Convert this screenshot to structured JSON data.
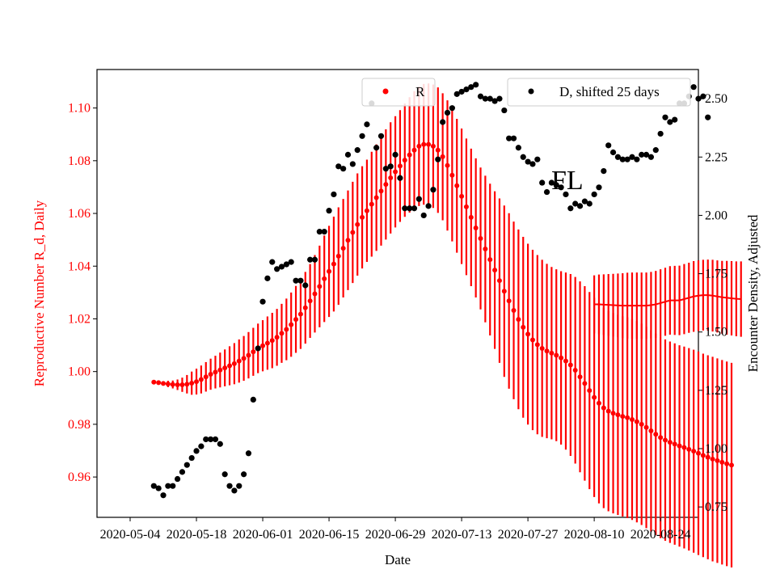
{
  "chart_data": {
    "type": "scatter",
    "title": "",
    "annotation": "FL",
    "xlabel": "Date",
    "ylabel_left": "Reproductive Number R_d, Daily",
    "ylabel_right": "Encounter Density, Adjusted",
    "colors": {
      "r_series": "#ff0000",
      "d_series": "#000000"
    },
    "grid": false,
    "legend": [
      {
        "label": "R",
        "placement": "top-center",
        "color": "#ff0000"
      },
      {
        "label": "D, shifted 25 days",
        "placement": "top-right",
        "color": "#000000"
      }
    ],
    "x_ticks": [
      "2020-05-04",
      "2020-05-18",
      "2020-06-01",
      "2020-06-15",
      "2020-06-29",
      "2020-07-13",
      "2020-07-27",
      "2020-08-10",
      "2020-08-24"
    ],
    "x_range": [
      "2020-04-27",
      "2020-09-01"
    ],
    "y_left_ticks": [
      "0.96",
      "0.98",
      "1.00",
      "1.02",
      "1.04",
      "1.06",
      "1.08",
      "1.10"
    ],
    "y_left_range": [
      0.9447,
      1.1146
    ],
    "y_right_ticks": [
      "0.75",
      "1.00",
      "1.25",
      "1.50",
      "1.75",
      "2.00",
      "2.25",
      "2.50"
    ],
    "y_right_range": [
      0.7055,
      2.6252
    ],
    "series_R": {
      "name": "R",
      "start_date": "2020-05-09",
      "values": [
        0.996,
        0.9958,
        0.9955,
        0.9953,
        0.9951,
        0.995,
        0.995,
        0.9952,
        0.9956,
        0.9962,
        0.997,
        0.998,
        0.999,
        0.9998,
        1.0006,
        1.0014,
        1.0022,
        1.003,
        1.004,
        1.005,
        1.0062,
        1.0075,
        1.0088,
        1.0098,
        1.0108,
        1.0118,
        1.013,
        1.0145,
        1.016,
        1.0178,
        1.0198,
        1.0218,
        1.0242,
        1.0268,
        1.0295,
        1.0323,
        1.0352,
        1.038,
        1.0408,
        1.0438,
        1.0468,
        1.0498,
        1.0528,
        1.0558,
        1.0585,
        1.061,
        1.0635,
        1.066,
        1.0685,
        1.071,
        1.0735,
        1.0758,
        1.078,
        1.0802,
        1.0822,
        1.084,
        1.0855,
        1.0862,
        1.0862,
        1.0855,
        1.084,
        1.0815,
        1.0782,
        1.0745,
        1.0705,
        1.0665,
        1.0625,
        1.0585,
        1.0545,
        1.0505,
        1.0465,
        1.0425,
        1.0385,
        1.0345,
        1.0305,
        1.0268,
        1.0232,
        1.0198,
        1.0168,
        1.0142,
        1.012,
        1.0102,
        1.0088,
        1.0078,
        1.007,
        1.0062,
        1.0052,
        1.004,
        1.0025,
        1.0005,
        0.998,
        0.9955,
        0.9928,
        0.9902,
        0.988,
        0.9862,
        0.985,
        0.9842,
        0.9836,
        0.983,
        0.9825,
        0.9818,
        0.981,
        0.98,
        0.9788,
        0.9775,
        0.9762,
        0.975,
        0.974,
        0.9732,
        0.9725,
        0.9718,
        0.9712,
        0.9705,
        0.9698,
        0.969,
        0.9682,
        0.9675,
        0.9668,
        0.9662,
        0.9656,
        0.965,
        0.9645
      ],
      "err_lo": [
        0.9958,
        0.9953,
        0.9947,
        0.9941,
        0.9936,
        0.993,
        0.9923,
        0.9917,
        0.9912,
        0.9913,
        0.9917,
        0.9924,
        0.9931,
        0.9936,
        0.994,
        0.9944,
        0.9948,
        0.9952,
        0.9958,
        0.9965,
        0.9974,
        0.9984,
        0.9994,
        1.0001,
        1.0007,
        1.0013,
        1.0022,
        1.0033,
        1.0043,
        1.0056,
        1.0071,
        1.0086,
        1.0106,
        1.0128,
        1.0148,
        1.0168,
        1.0188,
        1.0207,
        1.0228,
        1.0253,
        1.0281,
        1.0309,
        1.0336,
        1.0364,
        1.0391,
        1.0416,
        1.0436,
        1.0458,
        1.0478,
        1.0501,
        1.0524,
        1.0547,
        1.0568,
        1.0587,
        1.0603,
        1.0616,
        1.0628,
        1.0633,
        1.0631,
        1.0621,
        1.0602,
        1.0574,
        1.0535,
        1.0494,
        1.0451,
        1.0408,
        1.0366,
        1.0324,
        1.0281,
        1.0236,
        1.0187,
        1.0137,
        1.0086,
        1.0033,
        0.998,
        0.9935,
        0.9895,
        0.9857,
        0.9825,
        0.9799,
        0.9778,
        0.9762,
        0.9752,
        0.9747,
        0.9743,
        0.9736,
        0.9723,
        0.9704,
        0.968,
        0.9651,
        0.9618,
        0.9586,
        0.9554,
        0.9524,
        0.95,
        0.9482,
        0.947,
        0.9462,
        0.9456,
        0.945,
        0.9444,
        0.9437,
        0.9428,
        0.9418,
        0.9406,
        0.9393,
        0.938,
        0.9368,
        0.9358,
        0.935,
        0.9343,
        0.9336,
        0.9329,
        0.9321,
        0.9313,
        0.9304,
        0.9296,
        0.9288,
        0.928,
        0.9274,
        0.9268,
        0.9262,
        0.9257
      ],
      "err_hi": [
        0.9962,
        0.9963,
        0.9963,
        0.9965,
        0.9966,
        0.997,
        0.9977,
        0.9987,
        1.0,
        1.0011,
        1.0023,
        1.0036,
        1.0049,
        1.006,
        1.0072,
        1.0084,
        1.0096,
        1.0108,
        1.0122,
        1.0135,
        1.015,
        1.0166,
        1.0182,
        1.0195,
        1.0209,
        1.0223,
        1.0238,
        1.0257,
        1.0277,
        1.03,
        1.0325,
        1.035,
        1.0378,
        1.0408,
        1.0442,
        1.0478,
        1.0516,
        1.0553,
        1.0588,
        1.0623,
        1.0655,
        1.0687,
        1.072,
        1.0752,
        1.0779,
        1.0804,
        1.0834,
        1.0862,
        1.0892,
        1.0919,
        1.0946,
        1.0969,
        1.0992,
        1.1017,
        1.1041,
        1.1064,
        1.1082,
        1.1091,
        1.1093,
        1.1089,
        1.1078,
        1.1056,
        1.1029,
        1.0996,
        1.0959,
        1.0922,
        1.0884,
        1.0846,
        1.0809,
        1.0774,
        1.0743,
        1.0713,
        1.0684,
        1.0657,
        1.063,
        1.0601,
        1.0569,
        1.0539,
        1.0511,
        1.0485,
        1.0462,
        1.0442,
        1.0424,
        1.0409,
        1.0397,
        1.0388,
        1.0381,
        1.0376,
        1.037,
        1.0359,
        1.0342,
        1.0324,
        1.0302,
        1.028,
        1.026,
        1.0242,
        1.023,
        1.0222,
        1.0216,
        1.021,
        1.0206,
        1.0199,
        1.0192,
        1.0182,
        1.017,
        1.0157,
        1.0144,
        1.0132,
        1.0122,
        1.0114,
        1.0107,
        1.01,
        1.0095,
        1.0089,
        1.0083,
        1.0076,
        1.0068,
        1.0062,
        1.0056,
        1.005,
        1.0044,
        1.0038,
        1.0033
      ]
    },
    "series_R_late": {
      "start_date": "2020-08-10",
      "values": [
        1.0255,
        1.0255,
        1.0254,
        1.0253,
        1.0252,
        1.0251,
        1.025,
        1.025,
        1.025,
        1.025,
        1.025,
        1.025,
        1.0252,
        1.0255,
        1.026,
        1.0265,
        1.027,
        1.027,
        1.027,
        1.0275,
        1.028,
        1.0285,
        1.0288,
        1.029,
        1.029,
        1.0288,
        1.0285,
        1.0282,
        1.028,
        1.0278,
        1.0276,
        1.0275
      ],
      "err_lo": [
        1.0145,
        1.0142,
        1.0139,
        1.0136,
        1.0133,
        1.013,
        1.0127,
        1.0125,
        1.0124,
        1.0124,
        1.0124,
        1.0124,
        1.0126,
        1.0128,
        1.0132,
        1.0136,
        1.014,
        1.0139,
        1.0138,
        1.0142,
        1.0147,
        1.0151,
        1.0154,
        1.0156,
        1.0155,
        1.0152,
        1.0148,
        1.0144,
        1.014,
        1.0137,
        1.0134,
        1.0132
      ],
      "err_hi": [
        1.0365,
        1.0368,
        1.0369,
        1.037,
        1.0371,
        1.0372,
        1.0373,
        1.0375,
        1.0376,
        1.0376,
        1.0376,
        1.0376,
        1.0378,
        1.0382,
        1.0388,
        1.0394,
        1.04,
        1.0401,
        1.0402,
        1.0408,
        1.0413,
        1.0419,
        1.0422,
        1.0424,
        1.0425,
        1.0424,
        1.0422,
        1.042,
        1.042,
        1.0419,
        1.0418,
        1.0418
      ]
    },
    "series_D": {
      "name": "D, shifted 25 days",
      "start_date": "2020-05-09",
      "values": [
        0.84,
        0.83,
        0.8,
        0.84,
        0.84,
        0.87,
        0.9,
        0.93,
        0.96,
        0.99,
        1.01,
        1.04,
        1.04,
        1.04,
        1.02,
        0.89,
        0.84,
        0.82,
        0.84,
        0.89,
        0.98,
        1.21,
        1.43,
        1.63,
        1.73,
        1.8,
        1.77,
        1.78,
        1.79,
        1.8,
        1.72,
        1.72,
        1.7,
        1.81,
        1.81,
        1.93,
        1.93,
        2.02,
        2.09,
        2.21,
        2.2,
        2.26,
        2.22,
        2.28,
        2.34,
        2.39,
        2.48,
        2.29,
        2.34,
        2.2,
        2.21,
        2.26,
        2.16,
        2.03,
        2.03,
        2.03,
        2.07,
        2.0,
        2.04,
        2.11,
        2.24,
        2.4,
        2.44,
        2.46,
        2.52,
        2.53,
        2.54,
        2.55,
        2.56,
        2.51,
        2.5,
        2.5,
        2.49,
        2.5,
        2.45,
        2.33,
        2.33,
        2.29,
        2.25,
        2.23,
        2.22,
        2.24,
        2.14,
        2.1,
        2.14,
        2.13,
        2.12,
        2.09,
        2.03,
        2.05,
        2.04,
        2.06,
        2.05,
        2.09,
        2.12,
        2.19,
        2.3,
        2.27,
        2.25,
        2.24,
        2.24,
        2.25,
        2.24,
        2.26,
        2.26,
        2.25,
        2.28,
        2.35,
        2.42,
        2.4,
        2.41,
        2.48,
        2.48,
        2.51,
        2.55,
        2.5,
        2.51,
        2.42
      ]
    }
  }
}
